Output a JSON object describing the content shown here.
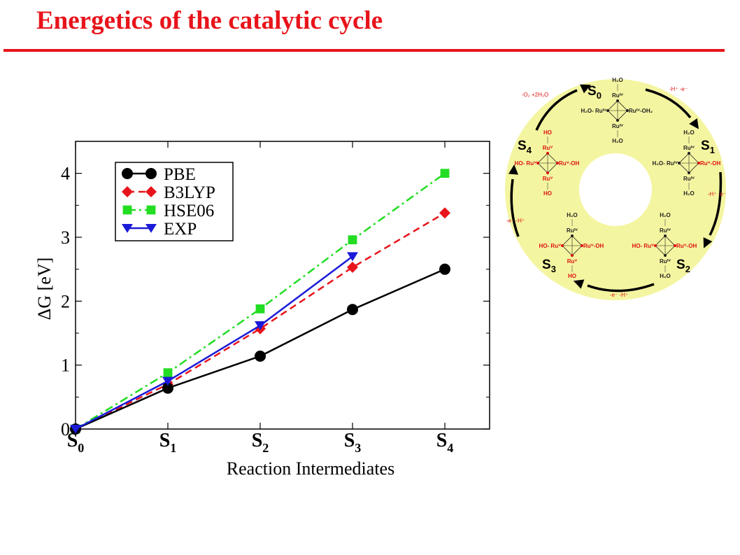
{
  "slide": {
    "title": "Energetics of the catalytic cycle"
  },
  "colors": {
    "title": "#e8141b",
    "PBE": "#000000",
    "B3LYP": "#e8141b",
    "HSE06": "#22dd22",
    "EXP": "#1a1ad8",
    "cycle_background": "#f4f5a0",
    "cycle_red": "#dd1111"
  },
  "chart_data": {
    "type": "line",
    "categories": [
      "S0",
      "S1",
      "S2",
      "S3",
      "S4"
    ],
    "category_labels": [
      {
        "main": "S",
        "sub": "0"
      },
      {
        "main": "S",
        "sub": "1"
      },
      {
        "main": "S",
        "sub": "2"
      },
      {
        "main": "S",
        "sub": "3"
      },
      {
        "main": "S",
        "sub": "4"
      }
    ],
    "xlabel": "Reaction Intermediates",
    "ylabel": "ΔG [eV]",
    "ylim": [
      0,
      4.5
    ],
    "yticks": [
      "0",
      "1",
      "2",
      "3",
      "4"
    ],
    "grid": false,
    "legend_position": "top-left",
    "series": [
      {
        "name": "PBE",
        "color": "#000000",
        "marker": "circle",
        "dash": "solid",
        "values": [
          0,
          0.64,
          1.14,
          1.87,
          2.5
        ]
      },
      {
        "name": "B3LYP",
        "color": "#e8141b",
        "marker": "diamond",
        "dash": "dashed",
        "values": [
          0,
          0.7,
          1.57,
          2.53,
          3.38
        ]
      },
      {
        "name": "HSE06",
        "color": "#22dd22",
        "marker": "square",
        "dash": "dashdot",
        "values": [
          0,
          0.88,
          1.88,
          2.96,
          4.0
        ]
      },
      {
        "name": "EXP",
        "color": "#1a1ad8",
        "marker": "triangle-down",
        "dash": "solid",
        "values": [
          0,
          0.75,
          1.62,
          2.7,
          null
        ]
      }
    ]
  },
  "cycle_diagram": {
    "states": {
      "S0": {
        "main": "S",
        "sub": "0"
      },
      "S1": {
        "main": "S",
        "sub": "1"
      },
      "S2": {
        "main": "S",
        "sub": "2"
      },
      "S3": {
        "main": "S",
        "sub": "3"
      },
      "S4": {
        "main": "S",
        "sub": "4"
      }
    },
    "step_labels": {
      "s0_s1": "-H⁺  -e⁻",
      "s1_s2": "-H⁺  -e⁻",
      "s2_s3": "-e⁻  -H⁺",
      "s3_s4": "-e⁻  -H⁺",
      "s4_s0": "-O₂ +2H₂O"
    },
    "ligands": {
      "water": "H₂O",
      "hydroxide": "HO",
      "ru4": "Ruᴵⱽ",
      "ru5": "Ruⱽ",
      "ru4_oh2": "Ruᴵⱽ-OH₂",
      "h2o_ru4": "H₂O- Ruᴵⱽ",
      "ho_ru5": "HO- Ruⱽ",
      "ru5_oh": "Ruⱽ-OH",
      "ru4_oh": "Ruᴵⱽ-OH",
      "ho_ru4": "HO- Ruᴵⱽ"
    }
  }
}
